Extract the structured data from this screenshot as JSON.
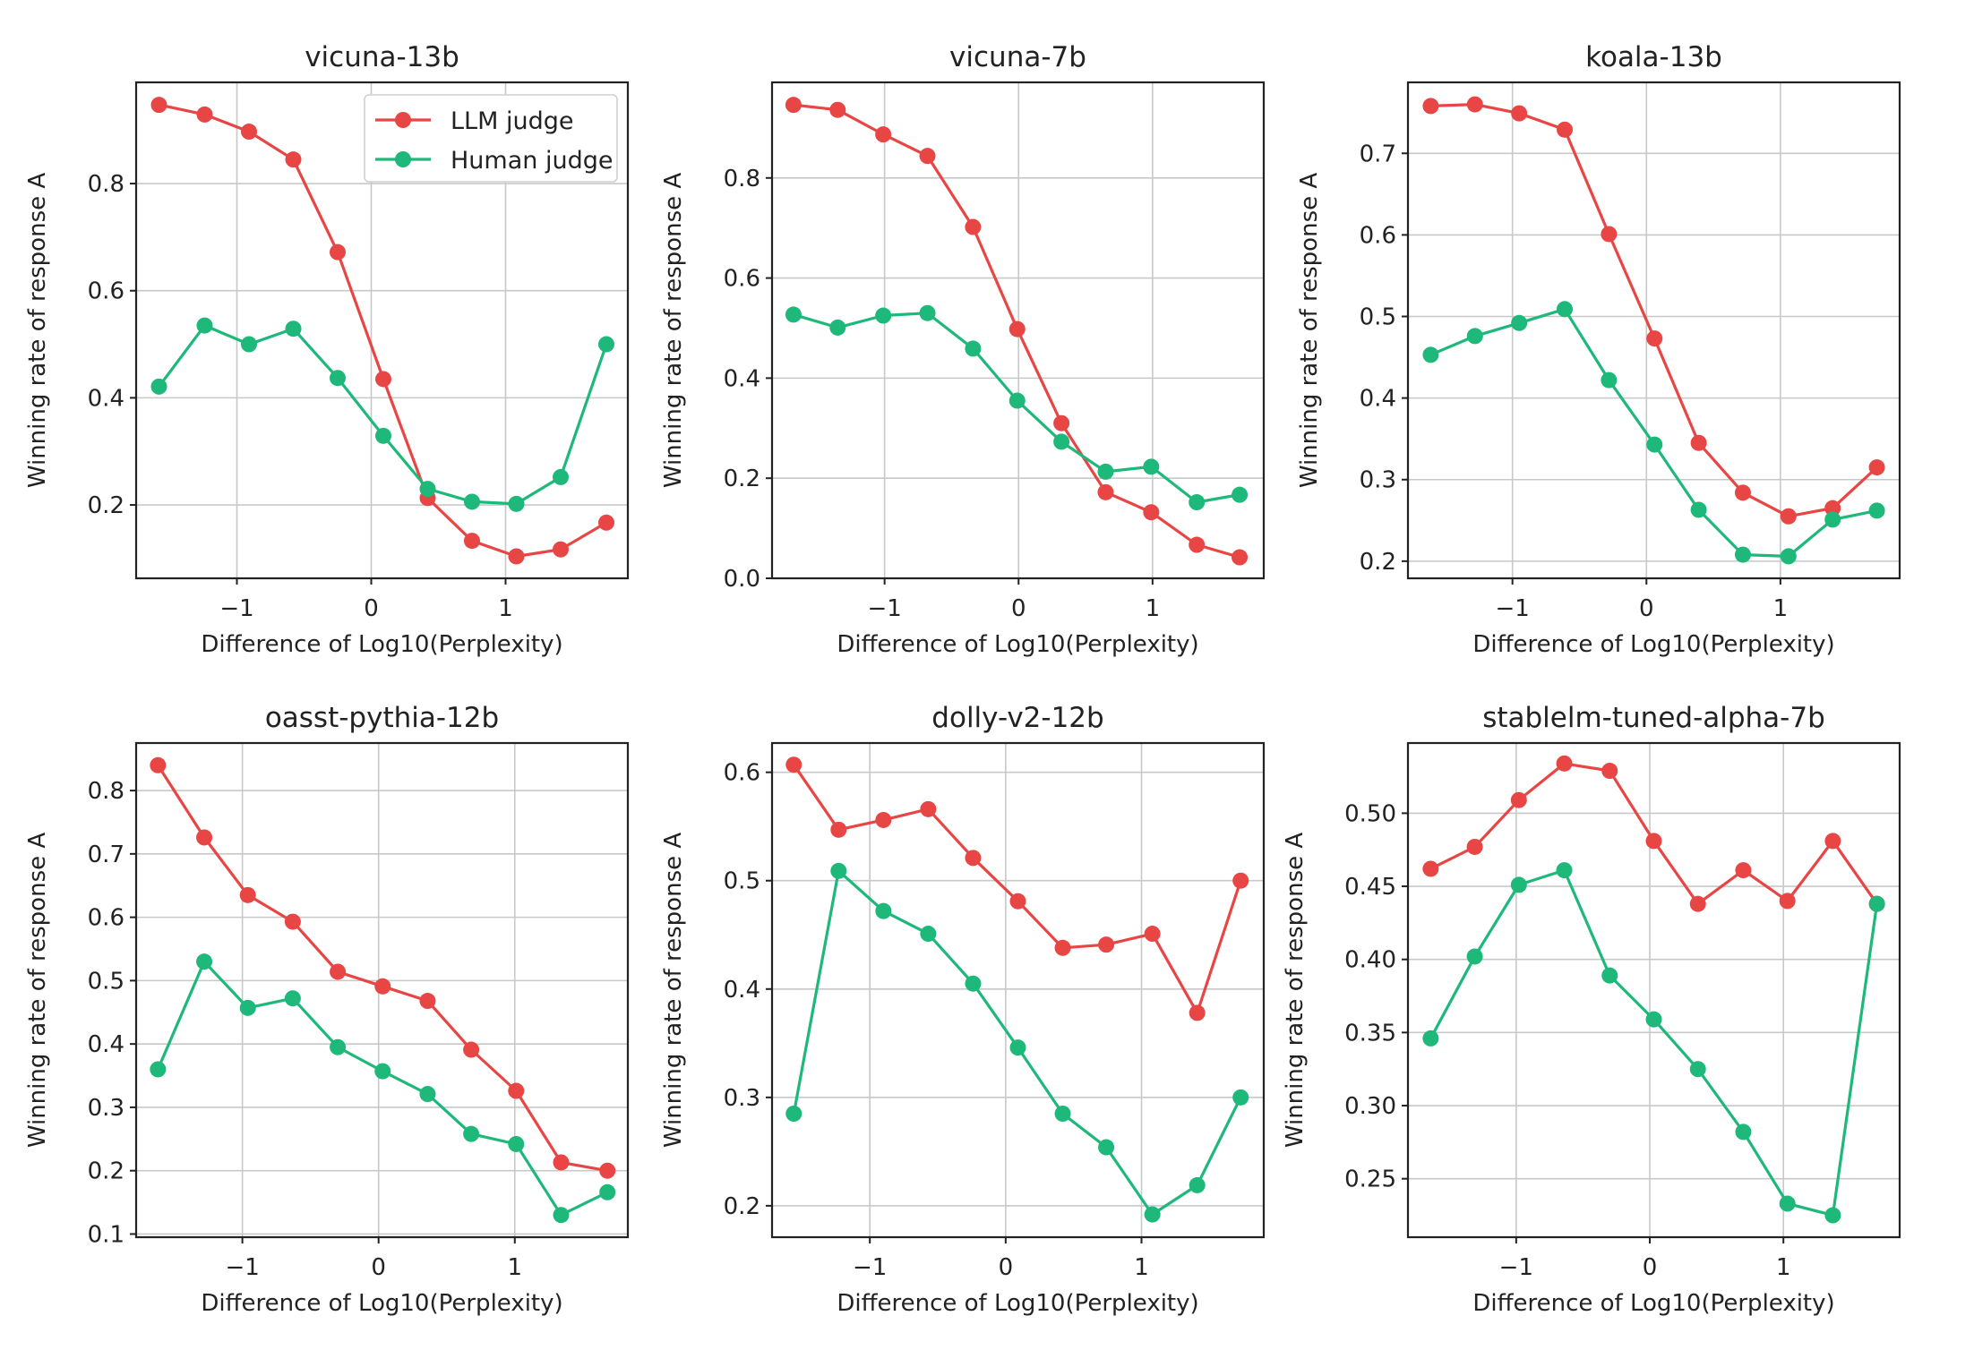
{
  "colors": {
    "llm": "#e84545",
    "human": "#1db87a"
  },
  "legend": {
    "placement": "upper-right of first panel",
    "items": [
      {
        "label": "LLM judge",
        "series": "llm"
      },
      {
        "label": "Human judge",
        "series": "human"
      }
    ]
  },
  "chart_data": [
    {
      "type": "line",
      "title": "vicuna-13b",
      "xlabel": "Difference of Log10(Perplexity)",
      "ylabel": "Winning rate of response A",
      "xlim": [
        -1.75,
        1.91
      ],
      "ylim": [
        0.063,
        0.989
      ],
      "xticks": [
        -1,
        0,
        1
      ],
      "xticklabels": [
        "−1",
        "0",
        "1"
      ],
      "yticks": [
        0.2,
        0.4,
        0.6,
        0.8
      ],
      "yticklabels": [
        "0.2",
        "0.4",
        "0.6",
        "0.8"
      ],
      "grid": true,
      "legend": true,
      "x": [
        -1.58,
        -1.24,
        -0.91,
        -0.58,
        -0.25,
        0.09,
        0.42,
        0.75,
        1.08,
        1.41,
        1.75
      ],
      "series": [
        {
          "name": "LLM judge",
          "key": "llm",
          "values": [
            0.947,
            0.929,
            0.897,
            0.845,
            0.672,
            0.435,
            0.213,
            0.133,
            0.104,
            0.117,
            0.167
          ]
        },
        {
          "name": "Human judge",
          "key": "human",
          "values": [
            0.421,
            0.535,
            0.5,
            0.529,
            0.437,
            0.329,
            0.23,
            0.206,
            0.202,
            0.252,
            0.5
          ]
        }
      ]
    },
    {
      "type": "line",
      "title": "vicuna-7b",
      "xlabel": "Difference of Log10(Perplexity)",
      "ylabel": "Winning rate of response A",
      "xlim": [
        -1.84,
        1.83
      ],
      "ylim": [
        0.0,
        0.991
      ],
      "xticks": [
        -1,
        0,
        1
      ],
      "xticklabels": [
        "−1",
        "0",
        "1"
      ],
      "yticks": [
        0.0,
        0.2,
        0.4,
        0.6,
        0.8
      ],
      "yticklabels": [
        "0.0",
        "0.2",
        "0.4",
        "0.6",
        "0.8"
      ],
      "grid": true,
      "legend": false,
      "x": [
        -1.68,
        -1.35,
        -1.01,
        -0.68,
        -0.34,
        -0.01,
        0.32,
        0.65,
        0.99,
        1.33,
        1.65
      ],
      "series": [
        {
          "name": "LLM judge",
          "key": "llm",
          "values": [
            0.946,
            0.936,
            0.887,
            0.844,
            0.702,
            0.498,
            0.31,
            0.172,
            0.132,
            0.067,
            0.042
          ]
        },
        {
          "name": "Human judge",
          "key": "human",
          "values": [
            0.527,
            0.501,
            0.525,
            0.53,
            0.459,
            0.355,
            0.273,
            0.213,
            0.223,
            0.152,
            0.167
          ]
        }
      ]
    },
    {
      "type": "line",
      "title": "koala-13b",
      "xlabel": "Difference of Log10(Perplexity)",
      "ylabel": "Winning rate of response A",
      "xlim": [
        -1.78,
        1.89
      ],
      "ylim": [
        0.179,
        0.787
      ],
      "xticks": [
        -1,
        0,
        1
      ],
      "xticklabels": [
        "−1",
        "0",
        "1"
      ],
      "yticks": [
        0.2,
        0.3,
        0.4,
        0.5,
        0.6,
        0.7
      ],
      "yticklabels": [
        "0.2",
        "0.3",
        "0.4",
        "0.5",
        "0.6",
        "0.7"
      ],
      "grid": true,
      "legend": false,
      "x": [
        -1.61,
        -1.28,
        -0.95,
        -0.61,
        -0.28,
        0.06,
        0.39,
        0.72,
        1.06,
        1.39,
        1.72
      ],
      "series": [
        {
          "name": "LLM judge",
          "key": "llm",
          "values": [
            0.758,
            0.76,
            0.749,
            0.729,
            0.601,
            0.473,
            0.345,
            0.284,
            0.255,
            0.265,
            0.315
          ]
        },
        {
          "name": "Human judge",
          "key": "human",
          "values": [
            0.453,
            0.476,
            0.492,
            0.509,
            0.422,
            0.343,
            0.263,
            0.208,
            0.206,
            0.251,
            0.262
          ]
        }
      ]
    },
    {
      "type": "line",
      "title": "oasst-pythia-12b",
      "xlabel": "Difference of Log10(Perplexity)",
      "ylabel": "Winning rate of response A",
      "xlim": [
        -1.78,
        1.83
      ],
      "ylim": [
        0.095,
        0.875
      ],
      "xticks": [
        -1,
        0,
        1
      ],
      "xticklabels": [
        "−1",
        "0",
        "1"
      ],
      "yticks": [
        0.1,
        0.2,
        0.3,
        0.4,
        0.5,
        0.6,
        0.7,
        0.8
      ],
      "yticklabels": [
        "0.1",
        "0.2",
        "0.3",
        "0.4",
        "0.5",
        "0.6",
        "0.7",
        "0.8"
      ],
      "grid": true,
      "legend": false,
      "x": [
        -1.62,
        -1.28,
        -0.96,
        -0.63,
        -0.3,
        0.03,
        0.36,
        0.68,
        1.01,
        1.34,
        1.68
      ],
      "series": [
        {
          "name": "LLM judge",
          "key": "llm",
          "values": [
            0.84,
            0.726,
            0.635,
            0.593,
            0.514,
            0.491,
            0.468,
            0.391,
            0.326,
            0.213,
            0.2
          ]
        },
        {
          "name": "Human judge",
          "key": "human",
          "values": [
            0.36,
            0.53,
            0.457,
            0.472,
            0.395,
            0.357,
            0.321,
            0.258,
            0.242,
            0.13,
            0.166
          ]
        }
      ]
    },
    {
      "type": "line",
      "title": "dolly-v2-12b",
      "xlabel": "Difference of Log10(Perplexity)",
      "ylabel": "Winning rate of response A",
      "xlim": [
        -1.72,
        1.9
      ],
      "ylim": [
        0.171,
        0.627
      ],
      "xticks": [
        -1,
        0,
        1
      ],
      "xticklabels": [
        "−1",
        "0",
        "1"
      ],
      "yticks": [
        0.2,
        0.3,
        0.4,
        0.5,
        0.6
      ],
      "yticklabels": [
        "0.2",
        "0.3",
        "0.4",
        "0.5",
        "0.6"
      ],
      "grid": true,
      "legend": false,
      "x": [
        -1.56,
        -1.23,
        -0.9,
        -0.57,
        -0.24,
        0.09,
        0.42,
        0.74,
        1.08,
        1.41,
        1.73
      ],
      "series": [
        {
          "name": "LLM judge",
          "key": "llm",
          "values": [
            0.607,
            0.547,
            0.556,
            0.566,
            0.521,
            0.481,
            0.438,
            0.441,
            0.451,
            0.378,
            0.5
          ]
        },
        {
          "name": "Human judge",
          "key": "human",
          "values": [
            0.285,
            0.509,
            0.472,
            0.451,
            0.405,
            0.346,
            0.285,
            0.254,
            0.192,
            0.219,
            0.3
          ]
        }
      ]
    },
    {
      "type": "line",
      "title": "stablelm-tuned-alpha-7b",
      "xlabel": "Difference of Log10(Perplexity)",
      "ylabel": "Winning rate of response A",
      "xlim": [
        -1.81,
        1.87
      ],
      "ylim": [
        0.21,
        0.548
      ],
      "xticks": [
        -1,
        0,
        1
      ],
      "xticklabels": [
        "−1",
        "0",
        "1"
      ],
      "yticks": [
        0.25,
        0.3,
        0.35,
        0.4,
        0.45,
        0.5
      ],
      "yticklabels": [
        "0.25",
        "0.30",
        "0.35",
        "0.40",
        "0.45",
        "0.50"
      ],
      "grid": true,
      "legend": false,
      "x": [
        -1.64,
        -1.31,
        -0.98,
        -0.64,
        -0.3,
        0.03,
        0.36,
        0.7,
        1.03,
        1.37,
        1.7
      ],
      "series": [
        {
          "name": "LLM judge",
          "key": "llm",
          "values": [
            0.462,
            0.477,
            0.509,
            0.534,
            0.529,
            0.481,
            0.438,
            0.461,
            0.44,
            0.481,
            0.438
          ]
        },
        {
          "name": "Human judge",
          "key": "human",
          "values": [
            0.346,
            0.402,
            0.451,
            0.461,
            0.389,
            0.359,
            0.325,
            0.282,
            0.233,
            0.225,
            0.438
          ]
        }
      ]
    }
  ]
}
